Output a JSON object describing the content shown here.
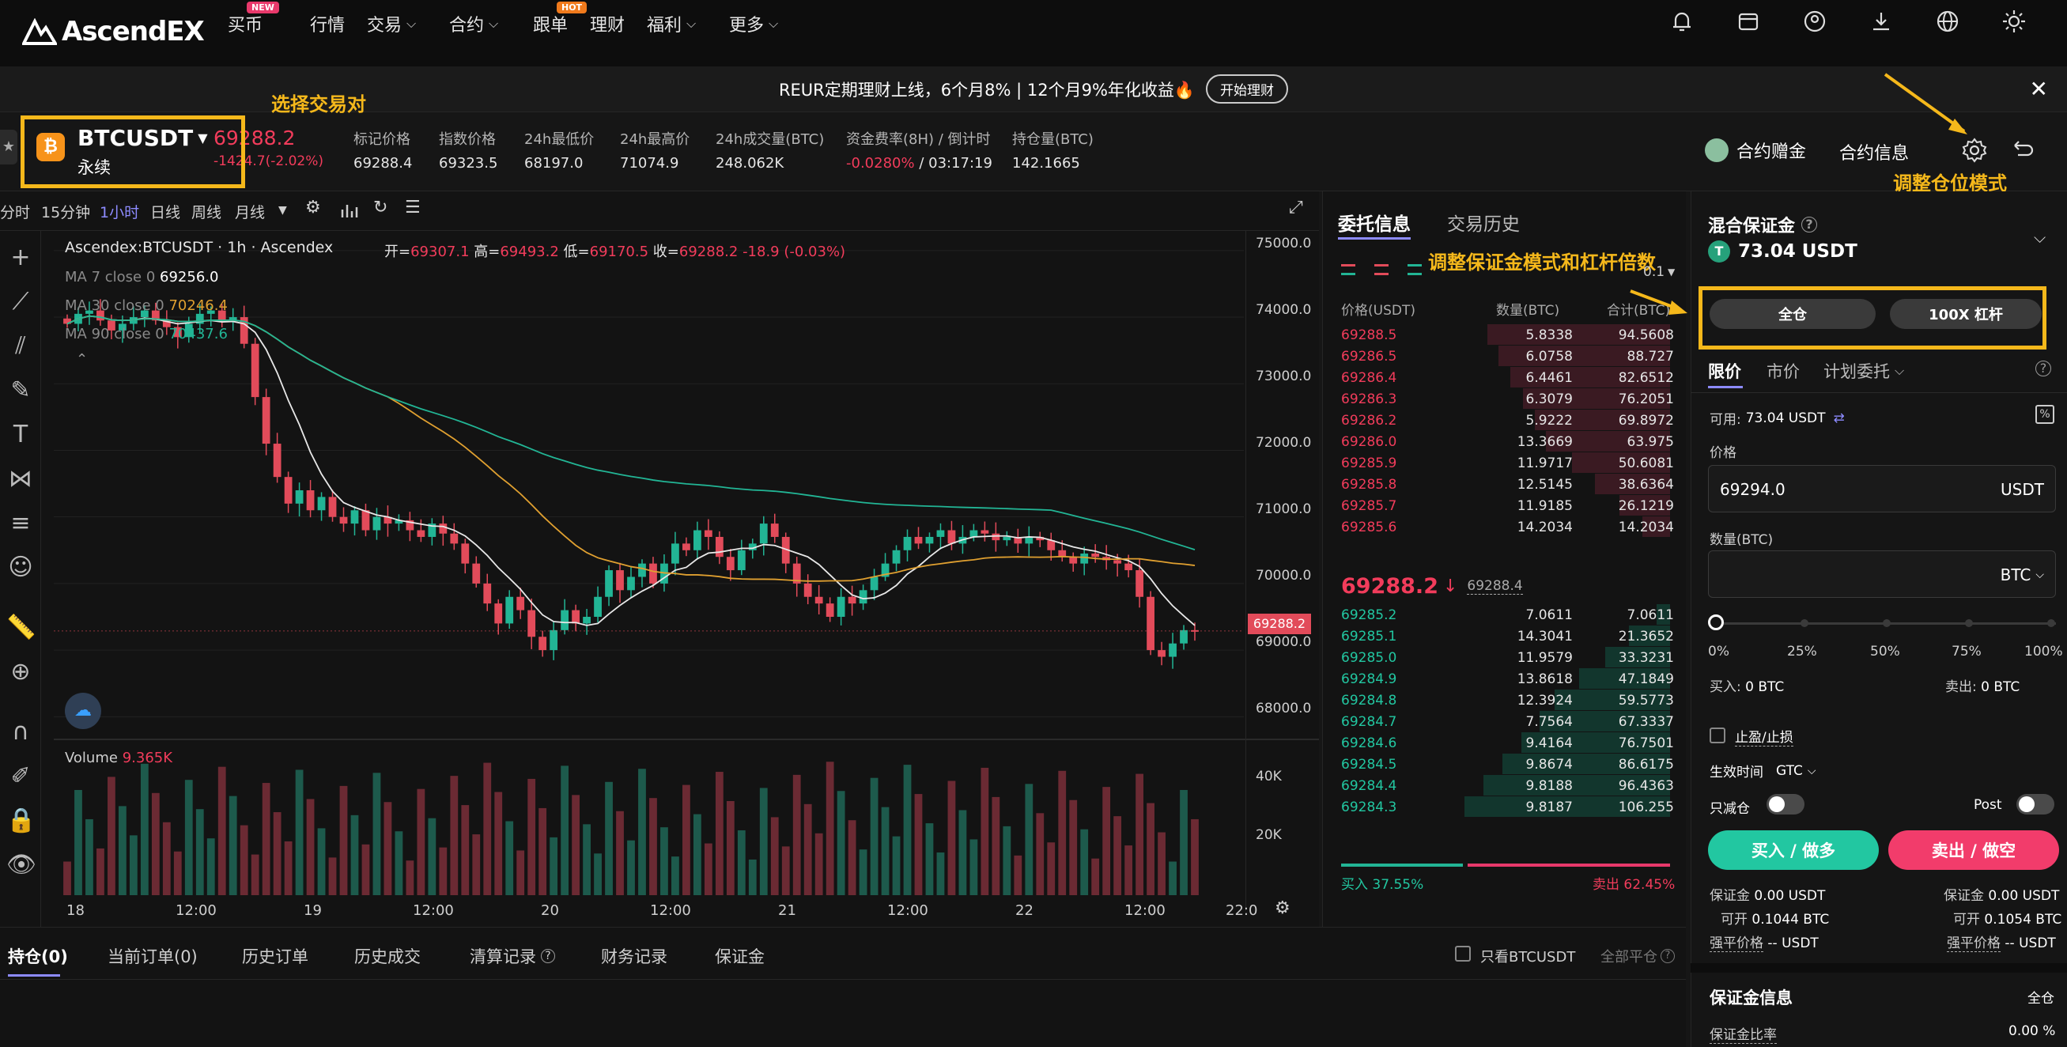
{
  "nav": {
    "logo": "AscendEX",
    "items": [
      {
        "label": "买币",
        "badge": "NEW"
      },
      {
        "label": "行情"
      },
      {
        "label": "交易",
        "chevron": true
      },
      {
        "label": "合约",
        "chevron": true
      },
      {
        "label": "跟单",
        "badge": "HOT"
      },
      {
        "label": "理财"
      },
      {
        "label": "福利",
        "chevron": true
      },
      {
        "label": "更多",
        "chevron": true
      }
    ],
    "badge_colors": {
      "NEW": "#e8396b",
      "HOT": "#f07a1c"
    }
  },
  "banner": {
    "text": "REUR定期理财上线，6个月8% | 12个月9%年化收益🔥",
    "button": "开始理财"
  },
  "ticker": {
    "symbol": "BTCUSDT",
    "type": "永续",
    "price": "69288.2",
    "change": "-1424.7(-2.02%)",
    "stats": [
      {
        "label": "标记价格",
        "value": "69288.4"
      },
      {
        "label": "指数价格",
        "value": "69323.5"
      },
      {
        "label": "24h最低价",
        "value": "68197.0"
      },
      {
        "label": "24h最高价",
        "value": "71074.9"
      },
      {
        "label": "24h成交量(BTC)",
        "value": "248.062K"
      },
      {
        "label": "资金费率(8H) / 倒计时",
        "value": "-0.0280%",
        "value2": "/ 03:17:19"
      },
      {
        "label": "持仓量(BTC)",
        "value": "142.1665"
      }
    ],
    "gift": "合约赠金",
    "info": "合约信息"
  },
  "annotations": {
    "pair": "选择交易对",
    "position_mode": "调整仓位模式",
    "margin_leverage": "调整保证金模式和杠杆倍数"
  },
  "chart_toolbar": {
    "timeframes": [
      "分时",
      "15分钟",
      "1小时",
      "日线",
      "周线",
      "月线"
    ],
    "active": "1小时"
  },
  "chart_data": {
    "type": "candlestick",
    "title": "Ascendex:BTCUSDT",
    "interval": "1h",
    "exchange": "Ascendex",
    "ohlc_text": {
      "open": "69307.1",
      "high": "69493.2",
      "low": "69170.5",
      "close": "69288.2",
      "change": "-18.9 (-0.03%)"
    },
    "ohlc_labels": {
      "open": "开=",
      "high": "高=",
      "low": "低=",
      "close": "收="
    },
    "indicators": [
      {
        "name": "MA 7 close 0",
        "value": "69256.0",
        "color": "#e8e8e8"
      },
      {
        "name": "MA 30 close 0",
        "value": "70246.4",
        "color": "#e0a030"
      },
      {
        "name": "MA 90 close 0",
        "value": "70437.6",
        "color": "#22b595"
      }
    ],
    "volume_label": "Volume",
    "volume_value": "9.365K",
    "y_ticks": [
      "75000.0",
      "74000.0",
      "73000.0",
      "72000.0",
      "71000.0",
      "70000.0",
      "69000.0",
      "68000.0"
    ],
    "vol_ticks": [
      "40K",
      "20K"
    ],
    "x_ticks": [
      "18",
      "12:00",
      "19",
      "12:00",
      "20",
      "12:00",
      "21",
      "12:00",
      "22",
      "12:00",
      "22:0"
    ],
    "last_price_tag": "69288.2",
    "ylim": [
      67600,
      75200
    ],
    "closes": [
      73900,
      74050,
      74100,
      73950,
      73800,
      73900,
      74000,
      74100,
      73950,
      73850,
      73700,
      73900,
      74050,
      74100,
      73950,
      74000,
      73600,
      72800,
      72100,
      71600,
      71200,
      71400,
      71100,
      71300,
      71000,
      70900,
      71100,
      70800,
      71000,
      70900,
      70950,
      70800,
      70700,
      70900,
      70750,
      70600,
      70300,
      70000,
      69700,
      69400,
      69800,
      69600,
      69200,
      69000,
      69300,
      69600,
      69400,
      69500,
      69800,
      70200,
      69900,
      70100,
      70300,
      70000,
      70300,
      70600,
      70500,
      70800,
      70700,
      70400,
      70200,
      70500,
      70600,
      70900,
      70700,
      70300,
      70000,
      69800,
      69700,
      69500,
      69800,
      69700,
      69900,
      70100,
      70300,
      70500,
      70700,
      70600,
      70700,
      70800,
      70600,
      70700,
      70800,
      70750,
      70650,
      70700,
      70600,
      70700,
      70650,
      70500,
      70400,
      70300,
      70450,
      70400,
      70350,
      70300,
      70200,
      69800,
      69000,
      68900,
      69100,
      69300,
      69288
    ]
  },
  "orderbook": {
    "tabs": [
      "委托信息",
      "交易历史"
    ],
    "precision": "0.1",
    "headers": [
      "价格(USDT)",
      "数量(BTC)",
      "合计(BTC)"
    ],
    "asks": [
      [
        "69288.5",
        "5.8338",
        "94.5608"
      ],
      [
        "69286.5",
        "6.0758",
        "88.727"
      ],
      [
        "69286.4",
        "6.4461",
        "82.6512"
      ],
      [
        "69286.3",
        "6.3079",
        "76.2051"
      ],
      [
        "69286.2",
        "5.9222",
        "69.8972"
      ],
      [
        "69286.0",
        "13.3669",
        "63.975"
      ],
      [
        "69285.9",
        "11.9717",
        "50.6081"
      ],
      [
        "69285.8",
        "12.5145",
        "38.6364"
      ],
      [
        "69285.7",
        "11.9185",
        "26.1219"
      ],
      [
        "69285.6",
        "14.2034",
        "14.2034"
      ]
    ],
    "mid_price": "69288.2",
    "mid_mark": "69288.4",
    "bids": [
      [
        "69285.2",
        "7.0611",
        "7.0611"
      ],
      [
        "69285.1",
        "14.3041",
        "21.3652"
      ],
      [
        "69285.0",
        "11.9579",
        "33.3231"
      ],
      [
        "69284.9",
        "13.8618",
        "47.1849"
      ],
      [
        "69284.8",
        "12.3924",
        "59.5773"
      ],
      [
        "69284.7",
        "7.7564",
        "67.3337"
      ],
      [
        "69284.6",
        "9.4164",
        "76.7501"
      ],
      [
        "69284.5",
        "9.8674",
        "86.6175"
      ],
      [
        "69284.4",
        "9.8188",
        "96.4363"
      ],
      [
        "69284.3",
        "9.8187",
        "106.255"
      ]
    ],
    "buy_ratio": "买入 37.55%",
    "sell_ratio": "卖出 62.45%"
  },
  "trade": {
    "margin_title": "混合保证金",
    "balance": "73.04 USDT",
    "cross": "全仓",
    "leverage": "100X 杠杆",
    "order_tabs": [
      "限价",
      "市价",
      "计划委托"
    ],
    "available_label": "可用:",
    "available": "73.04 USDT",
    "price_label": "价格",
    "price_value": "69294.0",
    "price_unit": "USDT",
    "qty_label": "数量(BTC)",
    "qty_unit": "BTC",
    "slider_marks": [
      "0%",
      "25%",
      "50%",
      "75%",
      "100%"
    ],
    "buy_label": "买入:",
    "buy_val": "0 BTC",
    "sell_label": "卖出:",
    "sell_val": "0 BTC",
    "tpsl": "止盈/止损",
    "tif_label": "生效时间",
    "tif_value": "GTC",
    "reduce_only": "只减仓",
    "post": "Post",
    "buy_btn": "买入 / 做多",
    "sell_btn": "卖出 / 做空",
    "left_stats": [
      [
        "保证金",
        "0.00 USDT"
      ],
      [
        "可开",
        "0.1044 BTC"
      ],
      [
        "强平价格",
        "-- USDT"
      ]
    ],
    "right_stats": [
      [
        "保证金",
        "0.00 USDT"
      ],
      [
        "可开",
        "0.1054 BTC"
      ],
      [
        "强平价格",
        "-- USDT"
      ]
    ],
    "margin_info_title": "保证金信息",
    "margin_info_mode": "全仓",
    "margin_ratio_label": "保证金比率",
    "margin_ratio": "0.00 %"
  },
  "bottom": {
    "tabs": [
      "持仓(0)",
      "当前订单(0)",
      "历史订单",
      "历史成交",
      "清算记录",
      "财务记录",
      "保证金"
    ],
    "only_pair": "只看BTCUSDT",
    "close_all": "全部平仓"
  }
}
